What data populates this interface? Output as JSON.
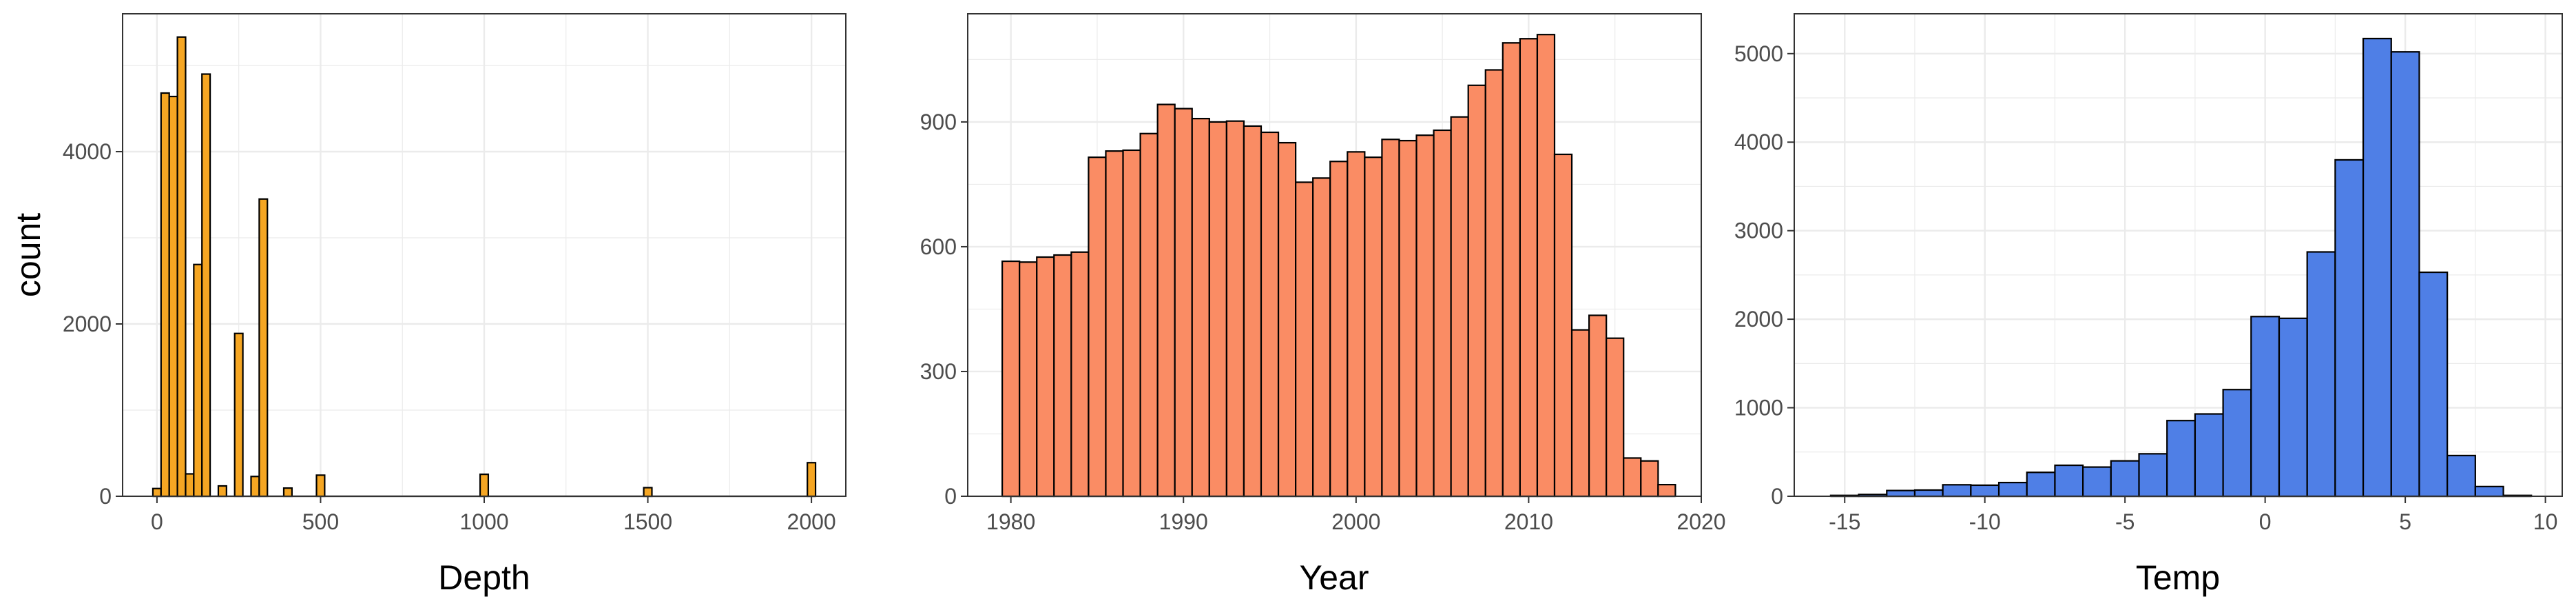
{
  "colors": {
    "background": "#ffffff",
    "panel_border": "#333333",
    "gridline": "#ebebeb",
    "tick_label": "#4d4d4d",
    "bar_outline": "#000000"
  },
  "chart_data": [
    {
      "type": "bar",
      "subtype": "histogram",
      "xlabel": "Depth",
      "ylabel": "count",
      "fill_color": "#f5a623",
      "xlim": [
        -105,
        2105
      ],
      "ylim": [
        0,
        5600
      ],
      "xticks": [
        0,
        500,
        1000,
        1500,
        2000
      ],
      "yticks": [
        0,
        2000,
        4000
      ],
      "bin_width": 25,
      "bins": [
        {
          "x": 0,
          "count": 90
        },
        {
          "x": 25,
          "count": 4680
        },
        {
          "x": 50,
          "count": 4640
        },
        {
          "x": 75,
          "count": 5330
        },
        {
          "x": 100,
          "count": 260
        },
        {
          "x": 125,
          "count": 2690
        },
        {
          "x": 150,
          "count": 4900
        },
        {
          "x": 200,
          "count": 120
        },
        {
          "x": 250,
          "count": 1890
        },
        {
          "x": 300,
          "count": 230
        },
        {
          "x": 325,
          "count": 3450
        },
        {
          "x": 400,
          "count": 95
        },
        {
          "x": 500,
          "count": 245
        },
        {
          "x": 1000,
          "count": 255
        },
        {
          "x": 1500,
          "count": 100
        },
        {
          "x": 2000,
          "count": 390
        }
      ],
      "grid": true
    },
    {
      "type": "bar",
      "subtype": "histogram",
      "xlabel": "Year",
      "ylabel": "",
      "fill_color": "#fa8c64",
      "xlim": [
        1977.5,
        2020
      ],
      "ylim": [
        0,
        1160
      ],
      "xticks": [
        1980,
        1990,
        2000,
        2010,
        2020
      ],
      "yticks": [
        0,
        300,
        600,
        900
      ],
      "bin_width": 1,
      "bins": [
        {
          "x": 1980,
          "count": 565
        },
        {
          "x": 1981,
          "count": 563
        },
        {
          "x": 1982,
          "count": 575
        },
        {
          "x": 1983,
          "count": 580
        },
        {
          "x": 1984,
          "count": 587
        },
        {
          "x": 1985,
          "count": 815
        },
        {
          "x": 1986,
          "count": 830
        },
        {
          "x": 1987,
          "count": 832
        },
        {
          "x": 1988,
          "count": 872
        },
        {
          "x": 1989,
          "count": 942
        },
        {
          "x": 1990,
          "count": 932
        },
        {
          "x": 1991,
          "count": 908
        },
        {
          "x": 1992,
          "count": 900
        },
        {
          "x": 1993,
          "count": 902
        },
        {
          "x": 1994,
          "count": 890
        },
        {
          "x": 1995,
          "count": 875
        },
        {
          "x": 1996,
          "count": 850
        },
        {
          "x": 1997,
          "count": 755
        },
        {
          "x": 1998,
          "count": 765
        },
        {
          "x": 1999,
          "count": 805
        },
        {
          "x": 2000,
          "count": 828
        },
        {
          "x": 2001,
          "count": 815
        },
        {
          "x": 2002,
          "count": 858
        },
        {
          "x": 2003,
          "count": 855
        },
        {
          "x": 2004,
          "count": 868
        },
        {
          "x": 2005,
          "count": 880
        },
        {
          "x": 2006,
          "count": 912
        },
        {
          "x": 2007,
          "count": 988
        },
        {
          "x": 2008,
          "count": 1025
        },
        {
          "x": 2009,
          "count": 1090
        },
        {
          "x": 2010,
          "count": 1100
        },
        {
          "x": 2011,
          "count": 1110
        },
        {
          "x": 2012,
          "count": 822
        },
        {
          "x": 2013,
          "count": 400
        },
        {
          "x": 2014,
          "count": 435
        },
        {
          "x": 2015,
          "count": 380
        },
        {
          "x": 2016,
          "count": 92
        },
        {
          "x": 2017,
          "count": 85
        },
        {
          "x": 2018,
          "count": 28
        }
      ],
      "grid": true
    },
    {
      "type": "bar",
      "subtype": "histogram",
      "xlabel": "Temp",
      "ylabel": "",
      "fill_color": "#4f7fe6",
      "xlim": [
        -16.8,
        10.6
      ],
      "ylim": [
        0,
        5450
      ],
      "xticks": [
        -15,
        -10,
        -5,
        0,
        5,
        10
      ],
      "yticks": [
        0,
        1000,
        2000,
        3000,
        4000,
        5000
      ],
      "bin_width": 1,
      "bins": [
        {
          "x": -15,
          "count": 10
        },
        {
          "x": -14,
          "count": 20
        },
        {
          "x": -13,
          "count": 65
        },
        {
          "x": -12,
          "count": 70
        },
        {
          "x": -11,
          "count": 130
        },
        {
          "x": -10,
          "count": 125
        },
        {
          "x": -9,
          "count": 155
        },
        {
          "x": -8,
          "count": 270
        },
        {
          "x": -7,
          "count": 350
        },
        {
          "x": -6,
          "count": 330
        },
        {
          "x": -5,
          "count": 400
        },
        {
          "x": -4,
          "count": 480
        },
        {
          "x": -3,
          "count": 855
        },
        {
          "x": -2,
          "count": 930
        },
        {
          "x": -1,
          "count": 1205
        },
        {
          "x": 0,
          "count": 2030
        },
        {
          "x": 1,
          "count": 2010
        },
        {
          "x": 2,
          "count": 2760
        },
        {
          "x": 3,
          "count": 3800
        },
        {
          "x": 4,
          "count": 5170
        },
        {
          "x": 5,
          "count": 5020
        },
        {
          "x": 6,
          "count": 2530
        },
        {
          "x": 7,
          "count": 460
        },
        {
          "x": 8,
          "count": 110
        },
        {
          "x": 9,
          "count": 10
        }
      ],
      "grid": true
    }
  ]
}
